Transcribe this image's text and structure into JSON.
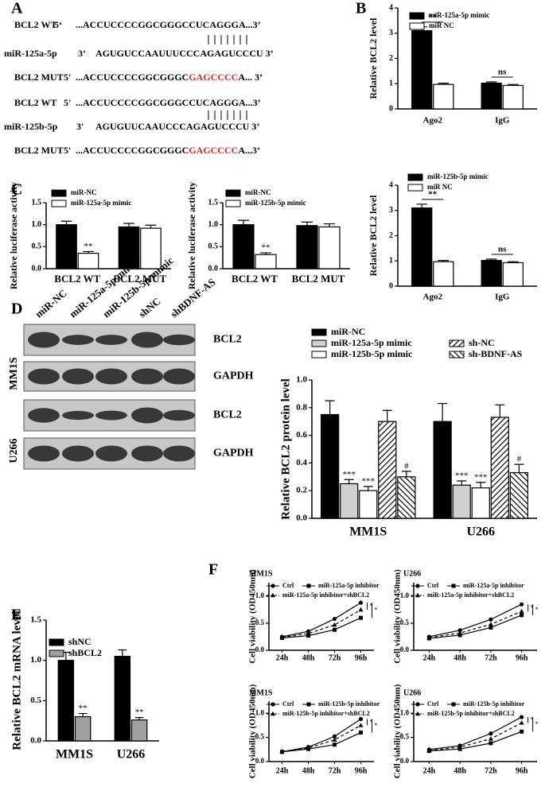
{
  "panel_labels": [
    "A",
    "B",
    "C",
    "D",
    "E",
    "F"
  ],
  "sequences": [
    {
      "name": "BCL2 WT",
      "end": "5‘",
      "seq": [
        {
          "text": "...ACCUCCCCGGCGGGCCUCAGGGA...3’"
        }
      ]
    },
    {
      "name": "miR-125a-5p",
      "end": "3’",
      "seq": [
        {
          "text": "AGUGUCCAAUUUCCCAGAGUCCCU 3’"
        }
      ]
    },
    {
      "name": "BCL2 MUT",
      "end": "5'",
      "seq": [
        {
          "text": "...ACCUCCCCGGCGGGC"
        },
        {
          "text": "GAGCCCC",
          "color": "#e8262a"
        },
        {
          "text": "A... 3’"
        }
      ]
    },
    {
      "name": "BCL2 WT",
      "end": "5'",
      "seq": [
        {
          "text": "...ACCUCCCCGGCGGGCCUCAGGGA...3’"
        }
      ]
    },
    {
      "name": "miR-125b-5p",
      "end": "3'",
      "seq": [
        {
          "text": "AGUGUUCAAUCCCAGAGUCCCU 3’"
        }
      ]
    },
    {
      "name": "BCL2 MUT",
      "end": "5'",
      "seq": [
        {
          "text": "...ACCUCCCCGGCGGGC"
        },
        {
          "text": "GAGCCCC",
          "color": "#e8262a"
        },
        {
          "text": "A...3’"
        }
      ]
    }
  ],
  "blot": {
    "lanes": [
      "miR-NC",
      "miR-125a-5p mimic",
      "miR-125b-5p mimic",
      "shNC",
      "shBDNF-AS"
    ],
    "groups": [
      "MM1S",
      "U266"
    ],
    "rows": [
      "BCL2",
      "GAPDH"
    ]
  },
  "chart_data": [
    {
      "type": "bar",
      "ylabel": "Relative BCL2 level",
      "categories": [
        "Ago2",
        "IgG"
      ],
      "ylim": [
        0,
        4
      ],
      "yticks": [
        0,
        1,
        2,
        3,
        4
      ],
      "series": [
        {
          "name": "miR-125a-5p mimic",
          "color": "#000000",
          "values": [
            3.1,
            1.02
          ],
          "errors": [
            0.15,
            0.05
          ]
        },
        {
          "name": "miR NC",
          "color": "#ffffff",
          "values": [
            0.97,
            0.93
          ],
          "errors": [
            0.05,
            0.04
          ]
        }
      ],
      "comparisons": [
        "**",
        "ns"
      ]
    },
    {
      "type": "bar",
      "ylabel": "Relative luciferase activity",
      "categories": [
        "BCL2 WT",
        "BCL2 MUT"
      ],
      "ylim": [
        0,
        1.5
      ],
      "yticks": [
        {
          "value": 0,
          "label": "0.0"
        },
        0.5,
        {
          "value": 1,
          "label": "1.0"
        },
        1.5
      ],
      "series": [
        {
          "name": "miR-NC",
          "color": "#000000",
          "values": [
            1.0,
            0.95
          ],
          "errors": [
            0.08,
            0.08
          ]
        },
        {
          "name": "miR-125a-5p mimic",
          "color": "#ffffff",
          "values": [
            0.35,
            0.92
          ],
          "errors": [
            0.04,
            0.07
          ],
          "significance": [
            "**",
            null
          ]
        }
      ]
    },
    {
      "type": "bar",
      "ylabel": "Relative luciferase activity",
      "categories": [
        "BCL2 WT",
        "BCL2 MUT"
      ],
      "ylim": [
        0,
        1.5
      ],
      "yticks": [
        {
          "value": 0,
          "label": "0.0"
        },
        0.5,
        {
          "value": 1,
          "label": "1.0"
        },
        1.5
      ],
      "series": [
        {
          "name": "miR-NC",
          "color": "#000000",
          "values": [
            1.0,
            0.98
          ],
          "errors": [
            0.1,
            0.08
          ]
        },
        {
          "name": "miR-125b-5p mimic",
          "color": "#ffffff",
          "values": [
            0.32,
            0.95
          ],
          "errors": [
            0.04,
            0.07
          ],
          "significance": [
            "**",
            null
          ]
        }
      ]
    },
    {
      "type": "bar",
      "ylabel": "Relative BCL2 level",
      "categories": [
        "Ago2",
        "IgG"
      ],
      "ylim": [
        0,
        4
      ],
      "yticks": [
        0,
        1,
        2,
        3,
        4
      ],
      "series": [
        {
          "name": "miR-125b-5p mimic",
          "color": "#000000",
          "values": [
            3.1,
            1.02
          ],
          "errors": [
            0.15,
            0.05
          ]
        },
        {
          "name": "miR NC",
          "color": "#ffffff",
          "values": [
            0.97,
            0.93
          ],
          "errors": [
            0.05,
            0.04
          ]
        }
      ],
      "comparisons": [
        "**",
        "ns"
      ]
    },
    {
      "type": "bar",
      "ylabel": "Relative BCL2 protein level",
      "categories": [
        "MM1S",
        "U266"
      ],
      "ylim": [
        0,
        1.0
      ],
      "yticks": [
        {
          "value": 0,
          "label": "0.0"
        },
        0.2,
        0.4,
        0.6,
        0.8,
        {
          "value": 1,
          "label": "1.0"
        }
      ],
      "series": [
        {
          "name": "miR-NC",
          "color": "#000000",
          "values": [
            0.75,
            0.7
          ],
          "errors": [
            0.1,
            0.13
          ]
        },
        {
          "name": "miR-125a-5p mimic",
          "color": "#d0d0d0",
          "values": [
            0.25,
            0.24
          ],
          "errors": [
            0.03,
            0.03
          ],
          "significance": [
            "***",
            "***"
          ]
        },
        {
          "name": "miR-125b-5p mimic",
          "color": "#ffffff",
          "values": [
            0.2,
            0.22
          ],
          "errors": [
            0.03,
            0.04
          ],
          "significance": [
            "***",
            "***"
          ]
        },
        {
          "name": "sh-NC",
          "color": "#ffffff",
          "hatch": "forward",
          "values": [
            0.7,
            0.73
          ],
          "errors": [
            0.08,
            0.09
          ]
        },
        {
          "name": "sh-BDNF-AS",
          "color": "#ffffff",
          "hatch": "backward",
          "values": [
            0.3,
            0.33
          ],
          "errors": [
            0.04,
            0.06
          ],
          "significance": [
            "#",
            "#"
          ]
        }
      ]
    },
    {
      "type": "bar",
      "ylabel": "Relative BCL2 mRNA level",
      "categories": [
        "MM1S",
        "U266"
      ],
      "ylim": [
        0,
        1.5
      ],
      "yticks": [
        {
          "value": 0,
          "label": "0.0"
        },
        0.5,
        {
          "value": 1,
          "label": "1.0"
        },
        1.5
      ],
      "series": [
        {
          "name": "shNC",
          "color": "#000000",
          "values": [
            1.0,
            1.05
          ],
          "errors": [
            0.1,
            0.08
          ]
        },
        {
          "name": "shBCL2",
          "color": "#a0a0a0",
          "values": [
            0.3,
            0.26
          ],
          "errors": [
            0.04,
            0.03
          ],
          "significance": [
            "**",
            "**"
          ]
        }
      ]
    },
    {
      "type": "line",
      "title": "MM1S",
      "ylabel": "Cell viability (OD450nm)",
      "categories": [
        "24h",
        "48h",
        "72h",
        "96h"
      ],
      "ylim": [
        0,
        1.25
      ],
      "yticks": [
        {
          "value": 0,
          "label": "0.0"
        },
        0.5,
        {
          "value": 1,
          "label": "1.0"
        }
      ],
      "series": [
        {
          "name": "Ctrl",
          "color": "#000000",
          "marker": "circle",
          "values": [
            0.25,
            0.35,
            0.58,
            0.88
          ]
        },
        {
          "name": "miR-125a-5p inhibitor",
          "color": "#000000",
          "marker": "square",
          "values": [
            0.23,
            0.27,
            0.38,
            0.6
          ]
        },
        {
          "name": "miR-125a-5p inhibitor+shBCL2",
          "color": "#000000",
          "marker": "triangle",
          "dashed": true,
          "values": [
            0.24,
            0.31,
            0.47,
            0.75
          ]
        }
      ],
      "significance": [
        "*",
        "*"
      ]
    },
    {
      "type": "line",
      "title": "U266",
      "ylabel": "Cell viability (OD450nm)",
      "categories": [
        "24h",
        "48h",
        "72h",
        "96h"
      ],
      "ylim": [
        0,
        1.25
      ],
      "yticks": [
        {
          "value": 0,
          "label": "0.0"
        },
        0.5,
        {
          "value": 1,
          "label": "1.0"
        }
      ],
      "series": [
        {
          "name": "Ctrl",
          "color": "#000000",
          "marker": "circle",
          "values": [
            0.25,
            0.37,
            0.57,
            0.85
          ]
        },
        {
          "name": "miR-125a-5p inhibitor",
          "color": "#000000",
          "marker": "square",
          "values": [
            0.22,
            0.28,
            0.42,
            0.65
          ]
        },
        {
          "name": "miR-125a-5p inhibitor+shBCL2",
          "color": "#000000",
          "marker": "triangle",
          "dashed": true,
          "values": [
            0.23,
            0.32,
            0.48,
            0.72
          ]
        }
      ],
      "significance": [
        "*",
        "*"
      ]
    },
    {
      "type": "line",
      "title": "MM1S",
      "ylabel": "Cell viability (OD450nm)",
      "categories": [
        "24h",
        "48h",
        "72h",
        "96h"
      ],
      "ylim": [
        0,
        1.25
      ],
      "yticks": [
        {
          "value": 0,
          "label": "0.0"
        },
        0.5,
        {
          "value": 1,
          "label": "1.0"
        }
      ],
      "series": [
        {
          "name": "Ctrl",
          "color": "#000000",
          "marker": "circle",
          "values": [
            0.2,
            0.3,
            0.52,
            0.88
          ]
        },
        {
          "name": "miR-125b-5p inhibitor",
          "color": "#000000",
          "marker": "square",
          "values": [
            0.2,
            0.26,
            0.35,
            0.6
          ]
        },
        {
          "name": "miR-125b-5p inhibitor+shBCL2",
          "color": "#000000",
          "marker": "triangle",
          "dashed": true,
          "values": [
            0.21,
            0.28,
            0.45,
            0.75
          ]
        }
      ],
      "significance": [
        "*",
        "*"
      ]
    },
    {
      "type": "line",
      "title": "U266",
      "ylabel": "Cell viability (OD450nm)",
      "categories": [
        "24h",
        "48h",
        "72h",
        "96h"
      ],
      "ylim": [
        0,
        1.25
      ],
      "yticks": [
        {
          "value": 0,
          "label": "0.0"
        },
        0.5,
        {
          "value": 1,
          "label": "1.0"
        }
      ],
      "series": [
        {
          "name": "Ctrl",
          "color": "#000000",
          "marker": "circle",
          "values": [
            0.25,
            0.33,
            0.58,
            0.92
          ]
        },
        {
          "name": "miR-125b-5p inhibitor",
          "color": "#000000",
          "marker": "square",
          "values": [
            0.22,
            0.26,
            0.38,
            0.62
          ]
        },
        {
          "name": "miR-125b-5p inhibitor+shBCL2",
          "color": "#000000",
          "marker": "triangle",
          "dashed": true,
          "values": [
            0.23,
            0.3,
            0.47,
            0.8
          ]
        }
      ],
      "significance": [
        "*",
        "*"
      ]
    }
  ]
}
